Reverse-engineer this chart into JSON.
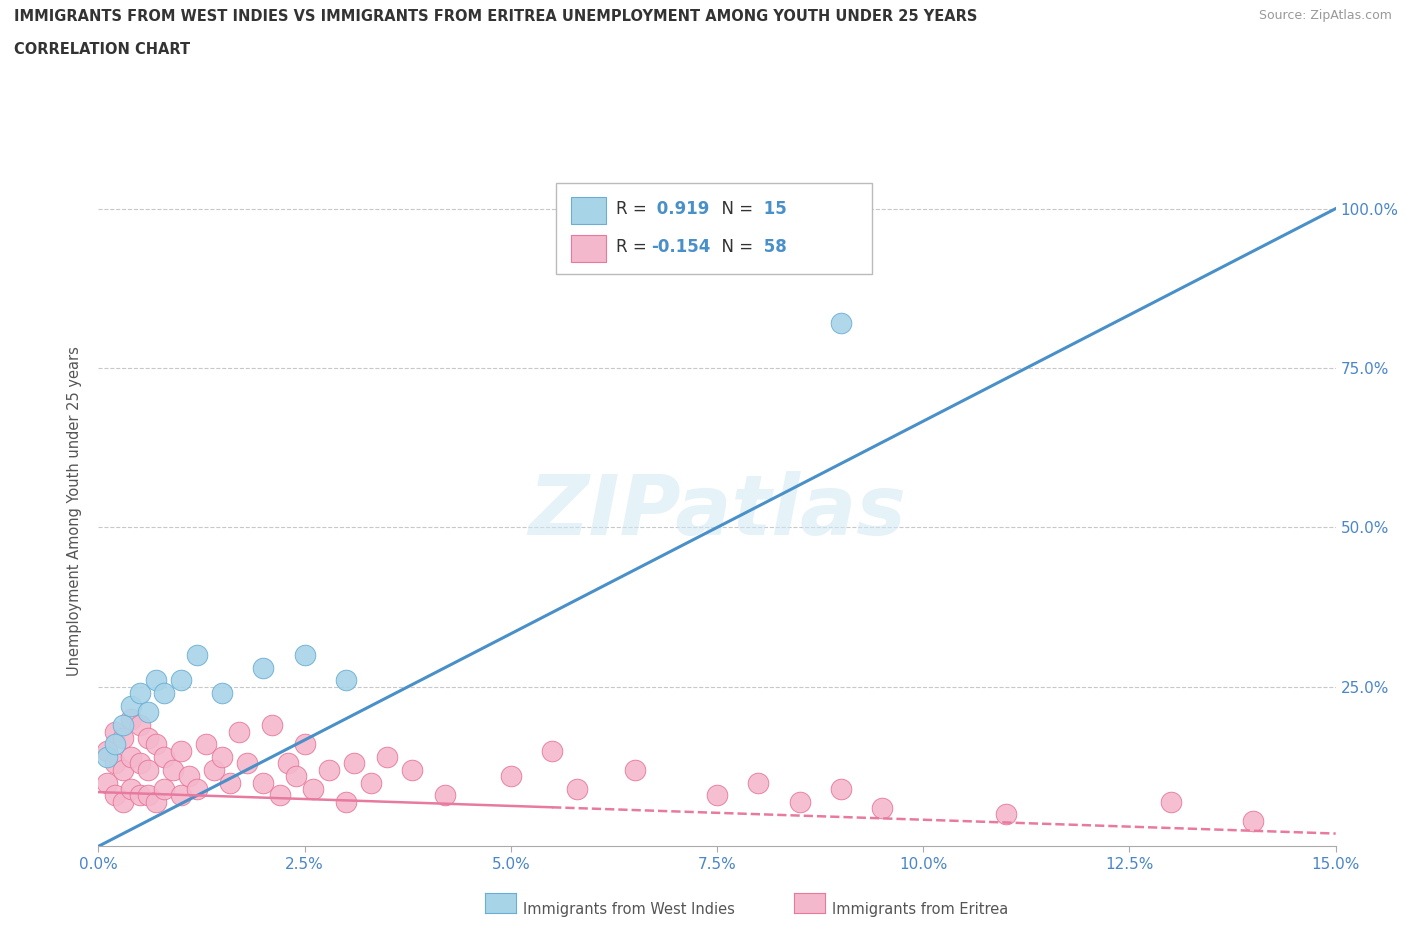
{
  "title_line1": "IMMIGRANTS FROM WEST INDIES VS IMMIGRANTS FROM ERITREA UNEMPLOYMENT AMONG YOUTH UNDER 25 YEARS",
  "title_line2": "CORRELATION CHART",
  "source_text": "Source: ZipAtlas.com",
  "ylabel": "Unemployment Among Youth under 25 years",
  "xlim": [
    0.0,
    0.15
  ],
  "ylim": [
    0.0,
    1.05
  ],
  "xtick_labels": [
    "0.0%",
    "2.5%",
    "5.0%",
    "7.5%",
    "10.0%",
    "12.5%",
    "15.0%"
  ],
  "xtick_vals": [
    0.0,
    0.025,
    0.05,
    0.075,
    0.1,
    0.125,
    0.15
  ],
  "ytick_labels": [
    "25.0%",
    "50.0%",
    "75.0%",
    "100.0%"
  ],
  "ytick_vals": [
    0.25,
    0.5,
    0.75,
    1.0
  ],
  "west_indies_color": "#a8d4e8",
  "eritrea_color": "#f4b8cc",
  "west_indies_edge": "#6aaed6",
  "eritrea_edge": "#e8799a",
  "trendline_blue": "#4a90c8",
  "trendline_pink": "#e87a9f",
  "R_west": 0.919,
  "N_west": 15,
  "R_eritrea": -0.154,
  "N_eritrea": 58,
  "west_x": [
    0.001,
    0.002,
    0.003,
    0.004,
    0.005,
    0.006,
    0.007,
    0.008,
    0.01,
    0.012,
    0.015,
    0.02,
    0.025,
    0.03,
    0.09
  ],
  "west_y": [
    0.14,
    0.16,
    0.19,
    0.22,
    0.24,
    0.21,
    0.26,
    0.24,
    0.26,
    0.3,
    0.24,
    0.28,
    0.3,
    0.26,
    0.82
  ],
  "eritrea_x": [
    0.001,
    0.001,
    0.002,
    0.002,
    0.002,
    0.003,
    0.003,
    0.003,
    0.004,
    0.004,
    0.004,
    0.005,
    0.005,
    0.005,
    0.006,
    0.006,
    0.006,
    0.007,
    0.007,
    0.008,
    0.008,
    0.009,
    0.01,
    0.01,
    0.011,
    0.012,
    0.013,
    0.014,
    0.015,
    0.016,
    0.017,
    0.018,
    0.02,
    0.021,
    0.022,
    0.023,
    0.024,
    0.025,
    0.026,
    0.028,
    0.03,
    0.031,
    0.033,
    0.035,
    0.038,
    0.042,
    0.05,
    0.055,
    0.058,
    0.065,
    0.075,
    0.08,
    0.085,
    0.09,
    0.095,
    0.11,
    0.13,
    0.14
  ],
  "eritrea_y": [
    0.1,
    0.15,
    0.08,
    0.13,
    0.18,
    0.07,
    0.12,
    0.17,
    0.09,
    0.14,
    0.2,
    0.08,
    0.13,
    0.19,
    0.08,
    0.12,
    0.17,
    0.07,
    0.16,
    0.09,
    0.14,
    0.12,
    0.08,
    0.15,
    0.11,
    0.09,
    0.16,
    0.12,
    0.14,
    0.1,
    0.18,
    0.13,
    0.1,
    0.19,
    0.08,
    0.13,
    0.11,
    0.16,
    0.09,
    0.12,
    0.07,
    0.13,
    0.1,
    0.14,
    0.12,
    0.08,
    0.11,
    0.15,
    0.09,
    0.12,
    0.08,
    0.1,
    0.07,
    0.09,
    0.06,
    0.05,
    0.07,
    0.04
  ],
  "trendline_west_x0": 0.0,
  "trendline_west_y0": 0.0,
  "trendline_west_x1": 0.15,
  "trendline_west_y1": 1.0,
  "trendline_eritrea_x0": 0.0,
  "trendline_eritrea_y0": 0.085,
  "trendline_eritrea_x1": 0.15,
  "trendline_eritrea_y1": 0.02,
  "watermark_text": "ZIPatlas",
  "background_color": "#ffffff",
  "grid_color": "#c8c8c8",
  "axis_label_color": "#4a86c8",
  "title_color": "#333333"
}
